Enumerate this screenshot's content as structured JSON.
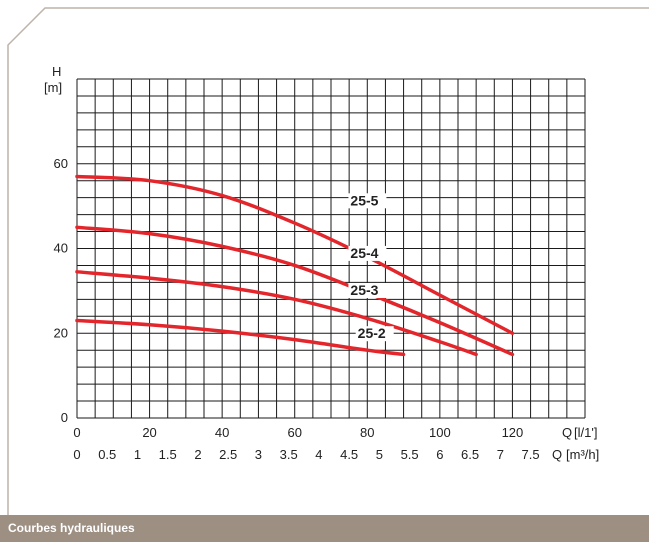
{
  "footer": {
    "title": "Courbes hydrauliques"
  },
  "colors": {
    "curve": "#e3262b",
    "frame": "#bdb3a9",
    "footer": "#9e8f83",
    "grid": "#1a1a1a"
  },
  "chart_data": {
    "type": "line",
    "title": "",
    "ylabel": "H",
    "yunit": "[m]",
    "xlabel": "Q",
    "xunit": "[l/1']",
    "x2label": "Q",
    "x2unit": "[m³/h]",
    "xlim": [
      0,
      140
    ],
    "ylim": [
      0,
      80
    ],
    "x_ticks": [
      "0",
      "20",
      "40",
      "60",
      "80",
      "100",
      "120"
    ],
    "x2_ticks": [
      "0",
      "0.5",
      "1",
      "1.5",
      "2",
      "2.5",
      "3",
      "3.5",
      "4",
      "4.5",
      "5",
      "5.5",
      "6",
      "6.5",
      "7",
      "7.5"
    ],
    "y_ticks": [
      "0",
      "20",
      "40",
      "60"
    ],
    "grid": true,
    "series": [
      {
        "name": "25-5",
        "x": [
          0,
          20,
          40,
          60,
          80,
          100,
          120
        ],
        "y": [
          57,
          56,
          52.5,
          46,
          38,
          29,
          20
        ]
      },
      {
        "name": "25-4",
        "x": [
          0,
          20,
          40,
          60,
          80,
          100,
          120
        ],
        "y": [
          45,
          43.5,
          40.5,
          36,
          29.5,
          22.5,
          15
        ]
      },
      {
        "name": "25-3",
        "x": [
          0,
          20,
          40,
          60,
          80,
          100,
          110
        ],
        "y": [
          34.5,
          33,
          31,
          28,
          23.5,
          18,
          15
        ]
      },
      {
        "name": "25-2",
        "x": [
          0,
          20,
          40,
          60,
          80,
          90
        ],
        "y": [
          23,
          22,
          20.5,
          18.5,
          16,
          15
        ]
      }
    ]
  }
}
